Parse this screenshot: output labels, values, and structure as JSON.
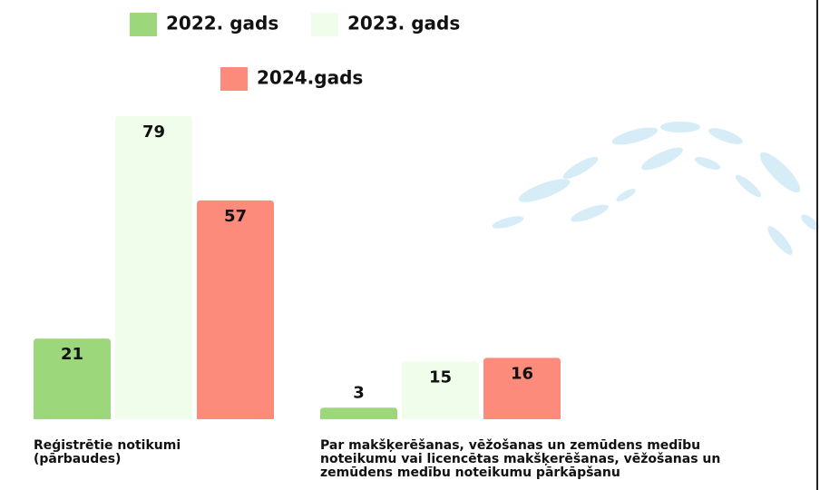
{
  "chart_data": {
    "type": "bar",
    "categories": [
      "Reģistrētie notikumi (pārbaudes)",
      "Par makšķerēšanas, vēžošanas un zemūdens medību noteikumu vai licencētas makšķerēšanas, vēžošanas un zemūdens medību noteikumu pārkāpšanu"
    ],
    "series": [
      {
        "name": "2022. gads",
        "color": "#9dd77c",
        "values": [
          21,
          3
        ]
      },
      {
        "name": "2023. gads",
        "color": "#effdea",
        "values": [
          79,
          15
        ]
      },
      {
        "name": "2024.gads",
        "color": "#fc8b7c",
        "values": [
          57,
          16
        ]
      }
    ]
  }
}
